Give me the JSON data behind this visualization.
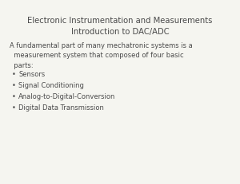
{
  "title_line1": "Electronic Instrumentation and Measurements",
  "title_line2": "Introduction to DAC/ADC",
  "title_fontsize": 7.2,
  "title_color": "#4a4a4a",
  "body_text": "A fundamental part of many mechatronic systems is a\n  measurement system that composed of four basic\n  parts:",
  "body_fontsize": 6.0,
  "body_color": "#4a4a4a",
  "bullet_items": [
    "Sensors",
    "Signal Conditioning",
    "Analog-to-Digital-Conversion",
    "Digital Data Transmission"
  ],
  "bullet_fontsize": 6.0,
  "bullet_color": "#4a4a4a",
  "background_color": "#f5f5f0",
  "bullet_symbol": "•"
}
